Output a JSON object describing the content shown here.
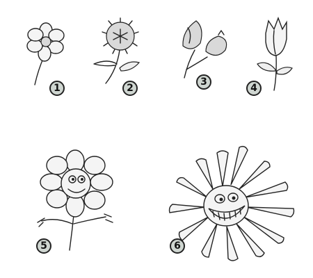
{
  "steps": [
    {
      "number": "1",
      "icon": "simple-flower-icon"
    },
    {
      "number": "2",
      "icon": "dandelion-flower-icon"
    },
    {
      "number": "3",
      "icon": "rose-buds-icon"
    },
    {
      "number": "4",
      "icon": "tulip-icon"
    },
    {
      "number": "5",
      "icon": "smiling-flower-with-arms-icon"
    },
    {
      "number": "6",
      "icon": "grinning-daisy-icon"
    }
  ]
}
